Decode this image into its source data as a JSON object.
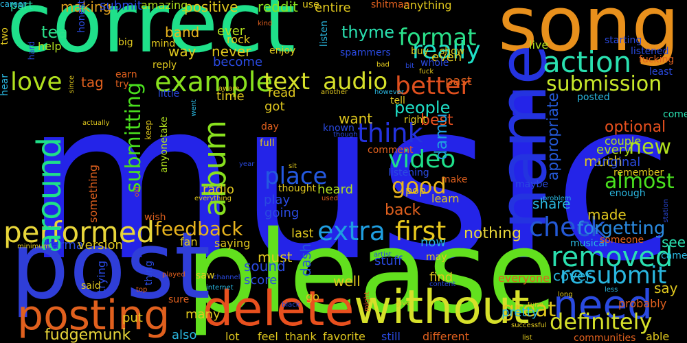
{
  "background": "#000000",
  "words": [
    {
      "text": "music",
      "color": "#2424e8"
    },
    {
      "text": "please",
      "color": "#62e01e"
    },
    {
      "text": "correct",
      "color": "#1fe08a"
    },
    {
      "text": "song",
      "color": "#e8901c"
    },
    {
      "text": "post",
      "color": "#2f3ed8"
    },
    {
      "text": "name",
      "color": "#2433e0"
    },
    {
      "text": "delete",
      "color": "#e8501e"
    },
    {
      "text": "posting",
      "color": "#e0601e"
    },
    {
      "text": "without",
      "color": "#d6e02a"
    },
    {
      "text": "need",
      "color": "#2a4ae0"
    },
    {
      "text": "performed",
      "color": "#e8d63a"
    },
    {
      "text": "removed",
      "color": "#2ae0b0"
    },
    {
      "text": "resubmit",
      "color": "#2ab7e0"
    },
    {
      "text": "check",
      "color": "#2459d6"
    },
    {
      "text": "extra",
      "color": "#1f9ee0"
    },
    {
      "text": "first",
      "color": "#e8c81e"
    },
    {
      "text": "definitely",
      "color": "#d6e02a"
    },
    {
      "text": "example",
      "color": "#88e01e"
    },
    {
      "text": "audio",
      "color": "#d6e02a"
    },
    {
      "text": "text",
      "color": "#d6e02a"
    },
    {
      "text": "love",
      "color": "#b0e01e"
    },
    {
      "text": "video",
      "color": "#1fe08a"
    },
    {
      "text": "action",
      "color": "#2ae0b0"
    },
    {
      "text": "submission",
      "color": "#c8e82a"
    },
    {
      "text": "better",
      "color": "#e0501e"
    },
    {
      "text": "really",
      "color": "#1fe0c8"
    },
    {
      "text": "format",
      "color": "#2ae08a"
    },
    {
      "text": "album",
      "color": "#88e01e"
    },
    {
      "text": "think",
      "color": "#2433e0"
    },
    {
      "text": "place",
      "color": "#2459e0"
    },
    {
      "text": "good",
      "color": "#e8b41e"
    },
    {
      "text": "almost",
      "color": "#4ae01e"
    },
    {
      "text": "new",
      "color": "#b0e01e"
    },
    {
      "text": "feedback",
      "color": "#e8b41e"
    },
    {
      "text": "great",
      "color": "#e0c81e"
    },
    {
      "text": "submitting",
      "color": "#4ae01e"
    },
    {
      "text": "around",
      "color": "#1fe08a"
    },
    {
      "text": "forgetting",
      "color": "#2a8ae0"
    },
    {
      "text": "optional",
      "color": "#e8501e"
    },
    {
      "text": "appropriate",
      "color": "#2459d6"
    },
    {
      "text": "pretty",
      "color": "#2ab7e0"
    },
    {
      "text": "tea",
      "color": "#2ae08a"
    },
    {
      "text": "tag",
      "color": "#e0601e"
    },
    {
      "text": "say",
      "color": "#e0c81e"
    },
    {
      "text": "see",
      "color": "#2ae0b0"
    },
    {
      "text": "nothing",
      "color": "#e8d63a"
    },
    {
      "text": "thyme",
      "color": "#2ae0b0"
    },
    {
      "text": "making",
      "color": "#e0a01e"
    },
    {
      "text": "positive",
      "color": "#e0c81e"
    },
    {
      "text": "submit",
      "color": "#2a4ae0"
    },
    {
      "text": "amazing",
      "color": "#b0e01e"
    },
    {
      "text": "reddit",
      "color": "#88e01e"
    },
    {
      "text": "entire",
      "color": "#e0c81e"
    },
    {
      "text": "anything",
      "color": "#e0c81e"
    },
    {
      "text": "band",
      "color": "#e8b41e"
    },
    {
      "text": "ever",
      "color": "#b0e01e"
    },
    {
      "text": "rock",
      "color": "#e0c81e"
    },
    {
      "text": "way",
      "color": "#e0c81e"
    },
    {
      "text": "never",
      "color": "#e0c81e"
    },
    {
      "text": "help",
      "color": "#b0e01e"
    },
    {
      "text": "part",
      "color": "#2ae0b0"
    },
    {
      "text": "become",
      "color": "#2a4ae0"
    },
    {
      "text": "live",
      "color": "#b0e01e"
    },
    {
      "text": "even",
      "color": "#e0c81e"
    },
    {
      "text": "people",
      "color": "#1fe0c8"
    },
    {
      "text": "want",
      "color": "#e0c81e"
    },
    {
      "text": "best",
      "color": "#e8501e"
    },
    {
      "text": "damu",
      "color": "#1f9ee0"
    },
    {
      "text": "got",
      "color": "#e0c81e"
    },
    {
      "text": "time",
      "color": "#e0c81e"
    },
    {
      "text": "read",
      "color": "#e0c81e"
    },
    {
      "text": "past",
      "color": "#e0601e"
    },
    {
      "text": "share",
      "color": "#2ab7e0"
    },
    {
      "text": "every",
      "color": "#b0e01e"
    },
    {
      "text": "much",
      "color": "#e0c81e"
    },
    {
      "text": "made",
      "color": "#e0c81e"
    },
    {
      "text": "original",
      "color": "#2a4ae0"
    },
    {
      "text": "couple",
      "color": "#b0e01e"
    },
    {
      "text": "heard",
      "color": "#b0e01e"
    },
    {
      "text": "play",
      "color": "#2a4ae0"
    },
    {
      "text": "going",
      "color": "#2a4ae0"
    },
    {
      "text": "back",
      "color": "#e0601e"
    },
    {
      "text": "learn",
      "color": "#e0c81e"
    },
    {
      "text": "pop",
      "color": "#e0c81e"
    },
    {
      "text": "radio",
      "color": "#e0c81e"
    },
    {
      "text": "last",
      "color": "#e0c81e"
    },
    {
      "text": "dash",
      "color": "#2459d6"
    },
    {
      "text": "now",
      "color": "#2ab7e0"
    },
    {
      "text": "must",
      "color": "#e0c81e"
    },
    {
      "text": "sound",
      "color": "#2a4ae0"
    },
    {
      "text": "score",
      "color": "#2a4ae0"
    },
    {
      "text": "well",
      "color": "#e0c81e"
    },
    {
      "text": "find",
      "color": "#e0c81e"
    },
    {
      "text": "stuff",
      "color": "#2a4ae0"
    },
    {
      "text": "cover",
      "color": "#2ab7e0"
    },
    {
      "text": "everyone",
      "color": "#e0601e"
    },
    {
      "text": "karma",
      "color": "#2a4ae0"
    },
    {
      "text": "version",
      "color": "#e0c81e"
    },
    {
      "text": "fudgemunk",
      "color": "#e8d63a"
    },
    {
      "text": "many",
      "color": "#e0c81e"
    },
    {
      "text": "also",
      "color": "#2ab7e0"
    },
    {
      "text": "lot",
      "color": "#e0c81e"
    },
    {
      "text": "feel",
      "color": "#e0c81e"
    },
    {
      "text": "thank",
      "color": "#e0c81e"
    },
    {
      "text": "favorite",
      "color": "#e0c81e"
    },
    {
      "text": "still",
      "color": "#2a4ae0"
    },
    {
      "text": "different",
      "color": "#e0601e"
    },
    {
      "text": "communities",
      "color": "#e0601e"
    },
    {
      "text": "able",
      "color": "#e0c81e"
    },
    {
      "text": "probably",
      "color": "#e0601e"
    },
    {
      "text": "fan",
      "color": "#e0c81e"
    },
    {
      "text": "saying",
      "color": "#e0c81e"
    },
    {
      "text": "wish",
      "color": "#e0601e"
    },
    {
      "text": "put",
      "color": "#e0c81e"
    },
    {
      "text": "trying",
      "color": "#2a4ae0"
    },
    {
      "text": "sure",
      "color": "#e0601e"
    },
    {
      "text": "thing",
      "color": "#2a4ae0"
    },
    {
      "text": "saw",
      "color": "#e0c81e"
    },
    {
      "text": "go",
      "color": "#e0c81e"
    },
    {
      "text": "said",
      "color": "#e0c81e"
    },
    {
      "text": "something",
      "color": "#e0601e"
    },
    {
      "text": "anyonetake",
      "color": "#b0e01e"
    },
    {
      "text": "known",
      "color": "#2a4ae0"
    },
    {
      "text": "listening",
      "color": "#2a4ae0"
    },
    {
      "text": "make",
      "color": "#e0601e"
    },
    {
      "text": "thought",
      "color": "#e0c81e"
    },
    {
      "text": "maybe",
      "color": "#2a4ae0"
    },
    {
      "text": "remember",
      "color": "#e0c81e"
    },
    {
      "text": "enough",
      "color": "#2ab7e0"
    },
    {
      "text": "come",
      "color": "#2ae0b0"
    },
    {
      "text": "came",
      "color": "#2ab7e0"
    },
    {
      "text": "musical",
      "color": "#2ab7e0"
    },
    {
      "text": "someone",
      "color": "#e0601e"
    },
    {
      "text": "may",
      "color": "#e0c81e"
    },
    {
      "text": "least",
      "color": "#2a4ae0"
    },
    {
      "text": "listened",
      "color": "#2a4ae0"
    },
    {
      "text": "posted",
      "color": "#2ab7e0"
    },
    {
      "text": "starting",
      "color": "#2a4ae0"
    },
    {
      "text": "tell",
      "color": "#e0c81e"
    },
    {
      "text": "right",
      "color": "#e0c81e"
    },
    {
      "text": "comment",
      "color": "#e0601e"
    },
    {
      "text": "full",
      "color": "#e0c81e"
    },
    {
      "text": "day",
      "color": "#e0601e"
    },
    {
      "text": "little",
      "color": "#2a4ae0"
    },
    {
      "text": "reply",
      "color": "#e0c81e"
    },
    {
      "text": "earn",
      "color": "#e0601e"
    },
    {
      "text": "try",
      "color": "#e0601e"
    },
    {
      "text": "big",
      "color": "#e0c81e"
    },
    {
      "text": "mind",
      "color": "#e0c81e"
    },
    {
      "text": "enjoy",
      "color": "#e0c81e"
    },
    {
      "text": "listen",
      "color": "#2ab7e0"
    },
    {
      "text": "spammers",
      "color": "#2a4ae0"
    },
    {
      "text": "shitman",
      "color": "#e0601e"
    },
    {
      "text": "use",
      "color": "#e0c81e"
    },
    {
      "text": "buy",
      "color": "#e0c81e"
    },
    {
      "text": "show",
      "color": "#e0c81e"
    },
    {
      "text": "whole",
      "color": "#2a4ae0"
    },
    {
      "text": "fucking",
      "color": "#e0601e"
    },
    {
      "text": "honest",
      "color": "#2a4ae0"
    },
    {
      "text": "two",
      "color": "#e0c81e"
    },
    {
      "text": "hear",
      "color": "#2ab7e0"
    },
    {
      "text": "since",
      "color": "#e0c81e"
    },
    {
      "text": "hard",
      "color": "#2a4ae0"
    },
    {
      "text": "kind",
      "color": "#e0601e"
    },
    {
      "text": "bad",
      "color": "#e0c81e"
    },
    {
      "text": "bit",
      "color": "#2a4ae0"
    },
    {
      "text": "fuck",
      "color": "#e0c81e"
    },
    {
      "text": "aware",
      "color": "#e0c81e"
    },
    {
      "text": "however",
      "color": "#2ab7e0"
    },
    {
      "text": "another",
      "color": "#e0c81e"
    },
    {
      "text": "though",
      "color": "#2a4ae0"
    },
    {
      "text": "went",
      "color": "#2ab7e0"
    },
    {
      "text": "keep",
      "color": "#e0c81e"
    },
    {
      "text": "old",
      "color": "#e0601e"
    },
    {
      "text": "actually",
      "color": "#e0c81e"
    },
    {
      "text": "year",
      "color": "#2a4ae0"
    },
    {
      "text": "sit",
      "color": "#e0c81e"
    },
    {
      "text": "everything",
      "color": "#e0c81e"
    },
    {
      "text": "used",
      "color": "#e0601e"
    },
    {
      "text": "problem",
      "color": "#2ab7e0"
    },
    {
      "text": "station",
      "color": "#2a4ae0"
    },
    {
      "text": "artist",
      "color": "#2a4ae0"
    },
    {
      "text": "played",
      "color": "#e0601e"
    },
    {
      "text": "minimum",
      "color": "#e0c81e"
    },
    {
      "text": "top",
      "color": "#e0601e"
    },
    {
      "text": "internet",
      "color": "#2ab7e0"
    },
    {
      "text": "channel",
      "color": "#2a4ae0"
    },
    {
      "text": "black",
      "color": "#2a4ae0"
    },
    {
      "text": "might",
      "color": "#e0601e"
    },
    {
      "text": "give",
      "color": "#e0c81e"
    },
    {
      "text": "successful",
      "color": "#e0c81e"
    },
    {
      "text": "tune",
      "color": "#e0c81e"
    },
    {
      "text": "content",
      "color": "#2a4ae0"
    },
    {
      "text": "long",
      "color": "#e0c81e"
    },
    {
      "text": "less",
      "color": "#2ab7e0"
    },
    {
      "text": "list",
      "color": "#e0c81e"
    },
    {
      "text": "career",
      "color": "#2ab7e0"
    }
  ]
}
